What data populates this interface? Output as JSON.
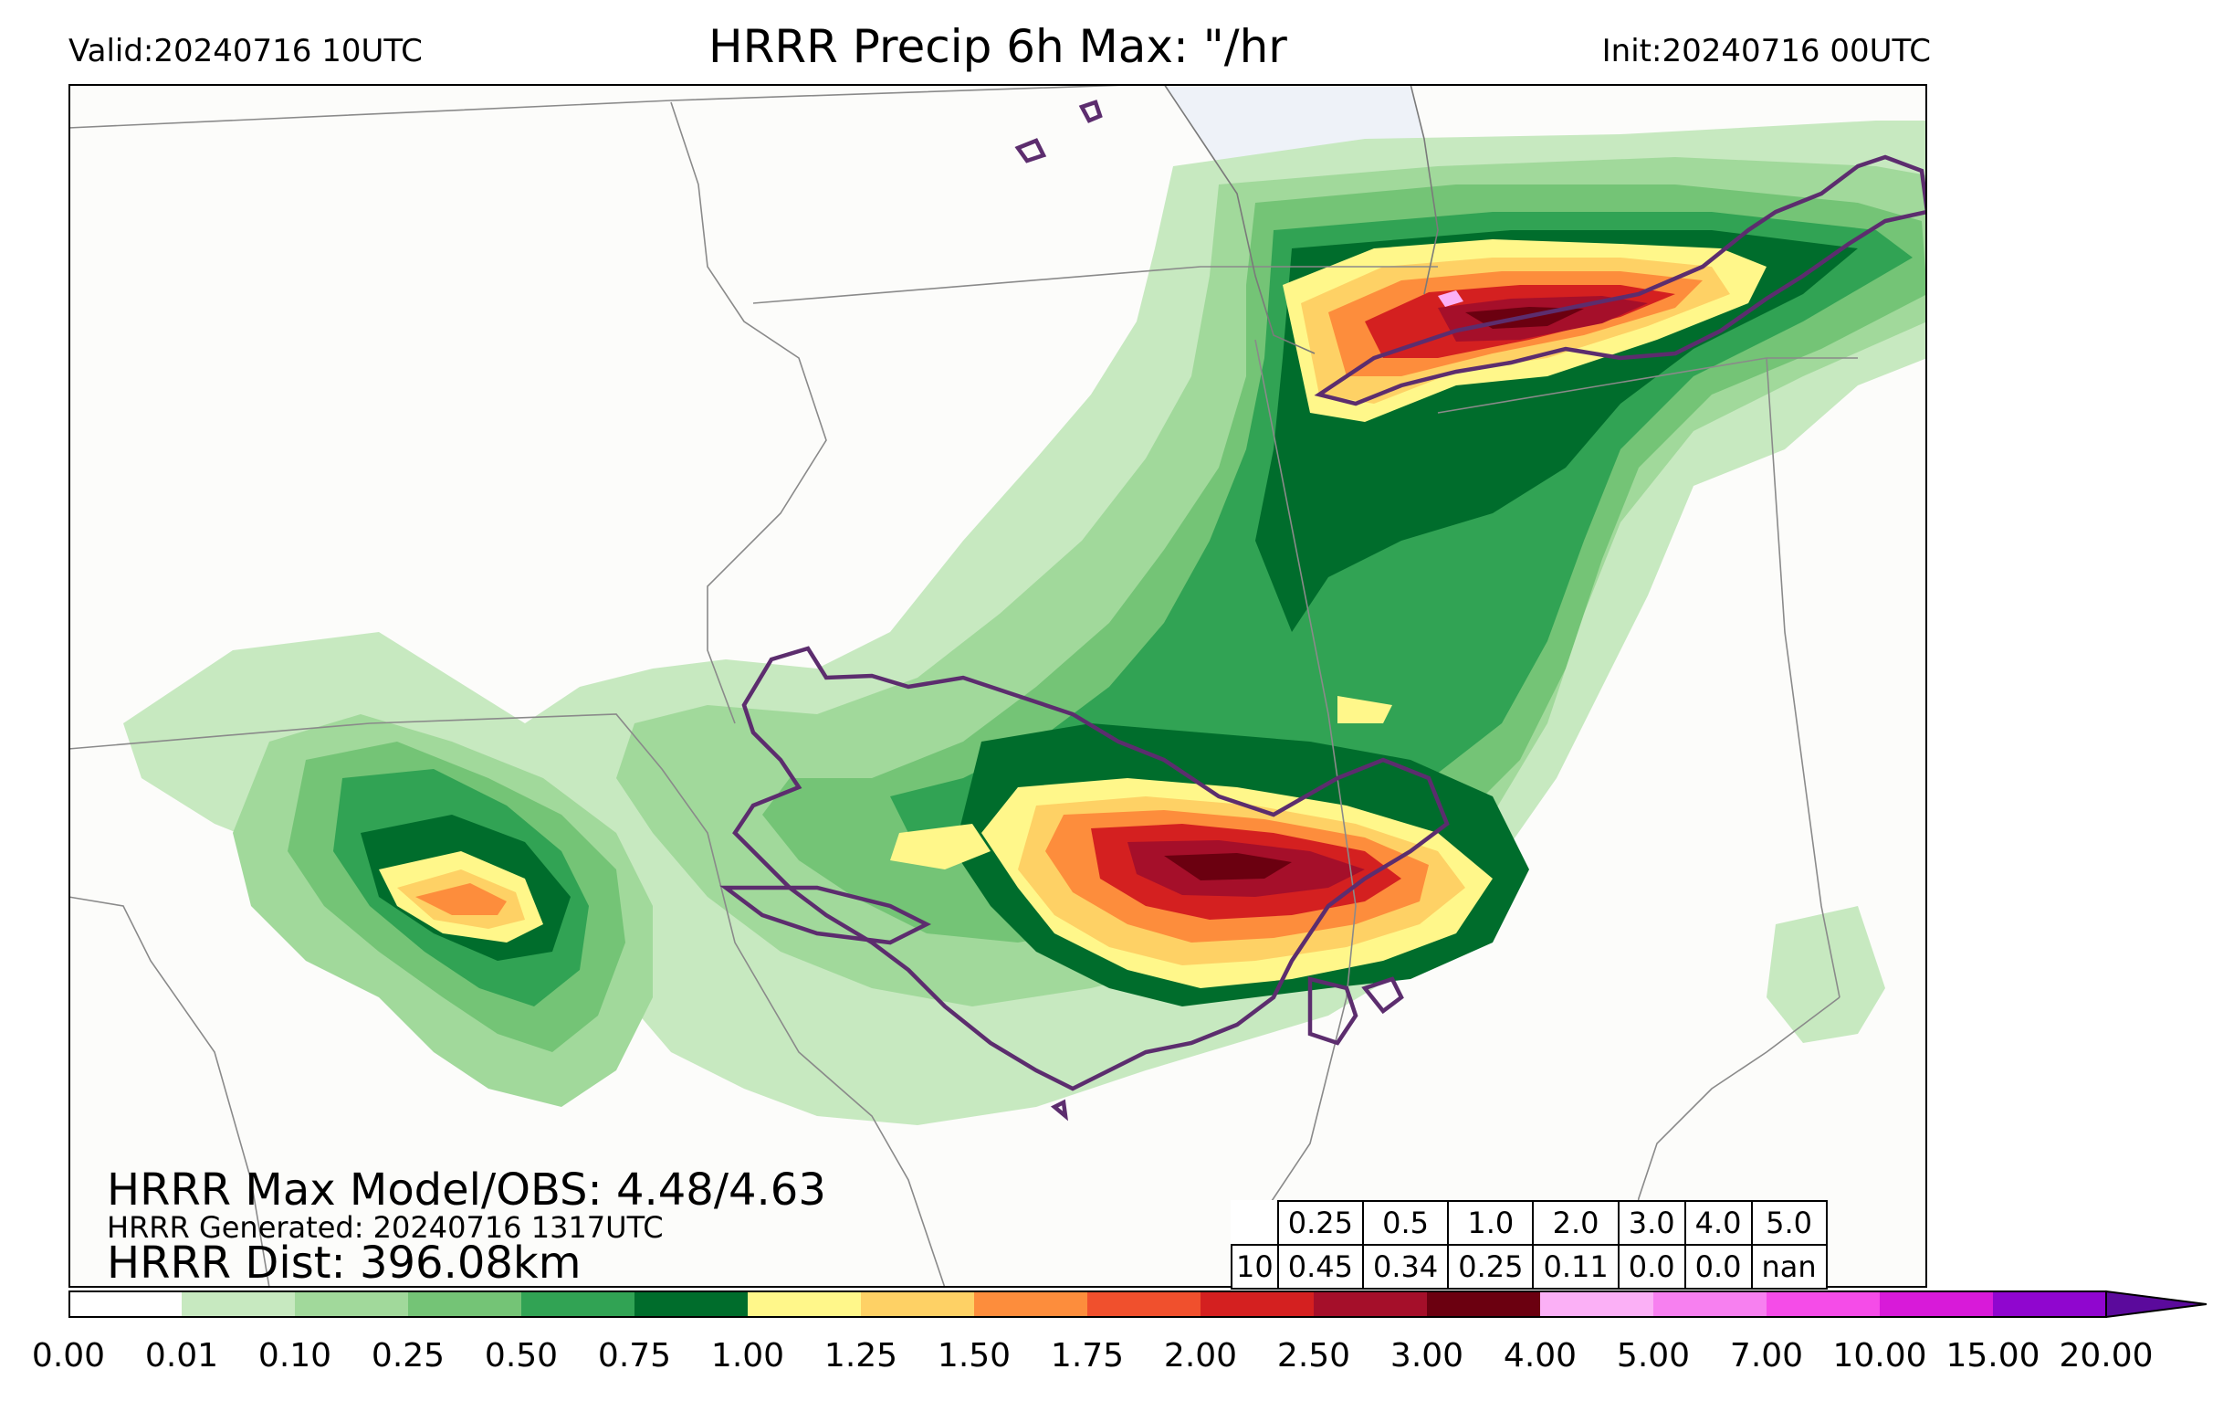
{
  "header": {
    "valid": "Valid:20240716 10UTC",
    "title": "HRRR Precip 6h Max: \"/hr",
    "init": "Init:20240716 00UTC"
  },
  "stats": {
    "max_model_obs": "HRRR Max Model/OBS: 4.48/4.63",
    "generated": "HRRR Generated: 20240716 1317UTC",
    "dist": "HRRR Dist: 396.08km"
  },
  "score_table": {
    "thresholds": [
      "0.25",
      "0.5",
      "1.0",
      "2.0",
      "3.0",
      "4.0",
      "5.0"
    ],
    "row_label": "10",
    "values": [
      "0.45",
      "0.34",
      "0.25",
      "0.11",
      "0.0",
      "0.0",
      "nan"
    ]
  },
  "colorbar": {
    "ticks": [
      "0.00",
      "0.01",
      "0.10",
      "0.25",
      "0.50",
      "0.75",
      "1.00",
      "1.25",
      "1.50",
      "1.75",
      "2.00",
      "2.50",
      "3.00",
      "4.00",
      "5.00",
      "7.00",
      "10.00",
      "15.00",
      "20.00"
    ],
    "colors": [
      "#ffffff",
      "#c7e9c0",
      "#a1d99b",
      "#74c476",
      "#31a354",
      "#006d2c",
      "#fff78a",
      "#fed165",
      "#fd8d3c",
      "#f0502d",
      "#d42020",
      "#a50f2a",
      "#6b0010",
      "#fbb0f6",
      "#f780f0",
      "#f54ce8",
      "#d81ad9",
      "#9006cf"
    ],
    "extend_color": "#5b0a9c"
  },
  "map": {
    "land_color": "#fcfcfa",
    "lake_color": "#eef2f8",
    "obs_contour_color": "#5c2d6e"
  }
}
